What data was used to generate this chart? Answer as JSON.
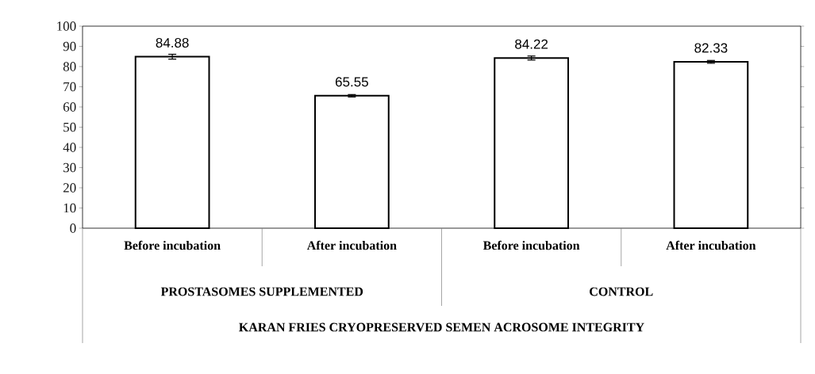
{
  "chart_data": {
    "type": "bar",
    "categories": [
      "Before incubation",
      "After incubation",
      "Before incubation",
      "After incubation"
    ],
    "values": [
      84.88,
      65.55,
      84.22,
      82.33
    ],
    "errors": [
      1.2,
      0.6,
      1.0,
      0.7
    ],
    "color": "#000000",
    "data_labels": true,
    "annotations": [
      "PROSTASOMES SUPPLEMENTED",
      "CONTROL",
      "KARAN FRIES CRYOPRESERVED SEMEN ACROSOME INTEGRITY"
    ],
    "ylim": [
      0,
      100
    ],
    "yticks": [
      0,
      10,
      20,
      30,
      40,
      50,
      60,
      70,
      80,
      90,
      100
    ],
    "grid": false
  }
}
